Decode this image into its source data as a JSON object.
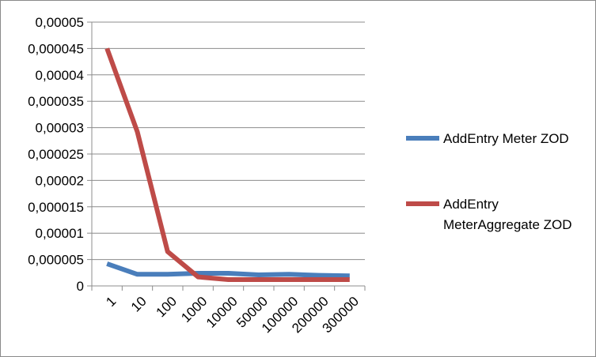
{
  "chart_data": {
    "type": "line",
    "title": "",
    "xlabel": "",
    "ylabel": "",
    "categories": [
      "1",
      "10",
      "100",
      "1000",
      "10000",
      "50000",
      "100000",
      "200000",
      "300000"
    ],
    "y_ticks": [
      "0",
      "0,000005",
      "0,00001",
      "0,000015",
      "0,00002",
      "0,000025",
      "0,00003",
      "0,000035",
      "0,00004",
      "0,000045",
      "0,00005"
    ],
    "ylim": [
      0,
      5e-05
    ],
    "grid": "horizontal",
    "legend": "right",
    "series": [
      {
        "name": "AddEntry Meter ZOD",
        "legend_lines": [
          "AddEntry Meter ZOD"
        ],
        "color": "#4a7ebb",
        "values": [
          4.2e-06,
          2.2e-06,
          2.2e-06,
          2.4e-06,
          2.4e-06,
          2.1e-06,
          2.2e-06,
          2e-06,
          1.9e-06
        ]
      },
      {
        "name": "AddEntry MeterAggregate ZOD",
        "legend_lines": [
          "AddEntry",
          "MeterAggregate ZOD"
        ],
        "color": "#be4b48",
        "values": [
          4.5e-05,
          2.92e-05,
          6.5e-06,
          1.7e-06,
          1.2e-06,
          1.2e-06,
          1.2e-06,
          1.2e-06,
          1.2e-06
        ]
      }
    ]
  }
}
